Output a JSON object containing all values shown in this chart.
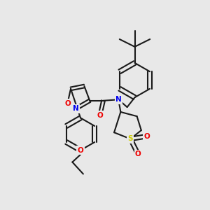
{
  "bg_color": "#e8e8e8",
  "bond_color": "#1a1a1a",
  "bond_width": 1.5,
  "dbo": 0.01,
  "atom_colors": {
    "N": "#0000ee",
    "O": "#ee0000",
    "S": "#cccc00",
    "C": "#1a1a1a"
  },
  "font_size": 7.5,
  "fig_size": [
    3.0,
    3.0
  ],
  "dpi": 100
}
